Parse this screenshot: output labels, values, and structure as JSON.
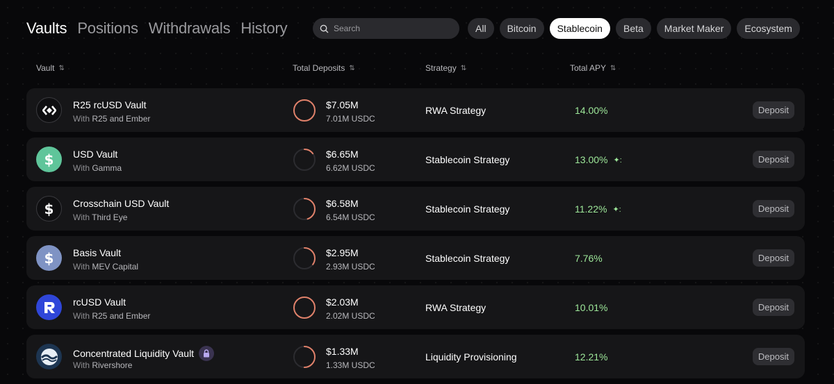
{
  "nav": {
    "tabs": [
      {
        "label": "Vaults",
        "active": true
      },
      {
        "label": "Positions",
        "active": false
      },
      {
        "label": "Withdrawals",
        "active": false
      },
      {
        "label": "History",
        "active": false
      }
    ]
  },
  "search": {
    "placeholder": "Search",
    "value": ""
  },
  "filters": [
    {
      "label": "All",
      "active": false
    },
    {
      "label": "Bitcoin",
      "active": false
    },
    {
      "label": "Stablecoin",
      "active": true
    },
    {
      "label": "Beta",
      "active": false
    },
    {
      "label": "Market Maker",
      "active": false
    },
    {
      "label": "Ecosystem",
      "active": false
    }
  ],
  "table": {
    "headers": {
      "vault": "Vault",
      "deposits": "Total Deposits",
      "strategy": "Strategy",
      "apy": "Total APY"
    },
    "sort_icon": "sort-arrows-icon",
    "deposit_label": "Deposit",
    "with_prefix": "With",
    "rows": [
      {
        "name": "R25 rcUSD Vault",
        "with": "R25 and Ember",
        "icon": "r25-diamond-icon",
        "icon_bg": "#0f0f11",
        "deposits": "$7.05M",
        "deposits_sub": "7.01M USDC",
        "fill": 1.0,
        "strategy": "RWA Strategy",
        "apy": "14.00%",
        "sparkle": false,
        "locked": false
      },
      {
        "name": "USD Vault",
        "with": "Gamma",
        "icon": "dollar-icon",
        "icon_bg": "#5fc59a",
        "deposits": "$6.65M",
        "deposits_sub": "6.62M USDC",
        "fill": 0.15,
        "strategy": "Stablecoin Strategy",
        "apy": "13.00%",
        "sparkle": true,
        "locked": false
      },
      {
        "name": "Crosschain USD Vault",
        "with": "Third Eye",
        "icon": "dollar-icon",
        "icon_bg": "#0f0f11",
        "deposits": "$6.58M",
        "deposits_sub": "6.54M USDC",
        "fill": 0.45,
        "strategy": "Stablecoin Strategy",
        "apy": "11.22%",
        "sparkle": true,
        "locked": false
      },
      {
        "name": "Basis Vault",
        "with": "MEV Capital",
        "icon": "dollar-icon",
        "icon_bg": "#7f93c4",
        "deposits": "$2.95M",
        "deposits_sub": "2.93M USDC",
        "fill": 0.35,
        "strategy": "Stablecoin Strategy",
        "apy": "7.76%",
        "sparkle": false,
        "locked": false
      },
      {
        "name": "rcUSD Vault",
        "with": "R25 and Ember",
        "icon": "r-logo-icon",
        "icon_bg": "#2f46d9",
        "deposits": "$2.03M",
        "deposits_sub": "2.02M USDC",
        "fill": 1.0,
        "strategy": "RWA Strategy",
        "apy": "10.01%",
        "sparkle": false,
        "locked": false
      },
      {
        "name": "Concentrated Liquidity Vault",
        "with": "Rivershore",
        "icon": "rivershore-icon",
        "icon_bg": "#1d3551",
        "deposits": "$1.33M",
        "deposits_sub": "1.33M USDC",
        "fill": 0.5,
        "strategy": "Liquidity Provisioning",
        "apy": "12.21%",
        "sparkle": false,
        "locked": true
      }
    ]
  }
}
